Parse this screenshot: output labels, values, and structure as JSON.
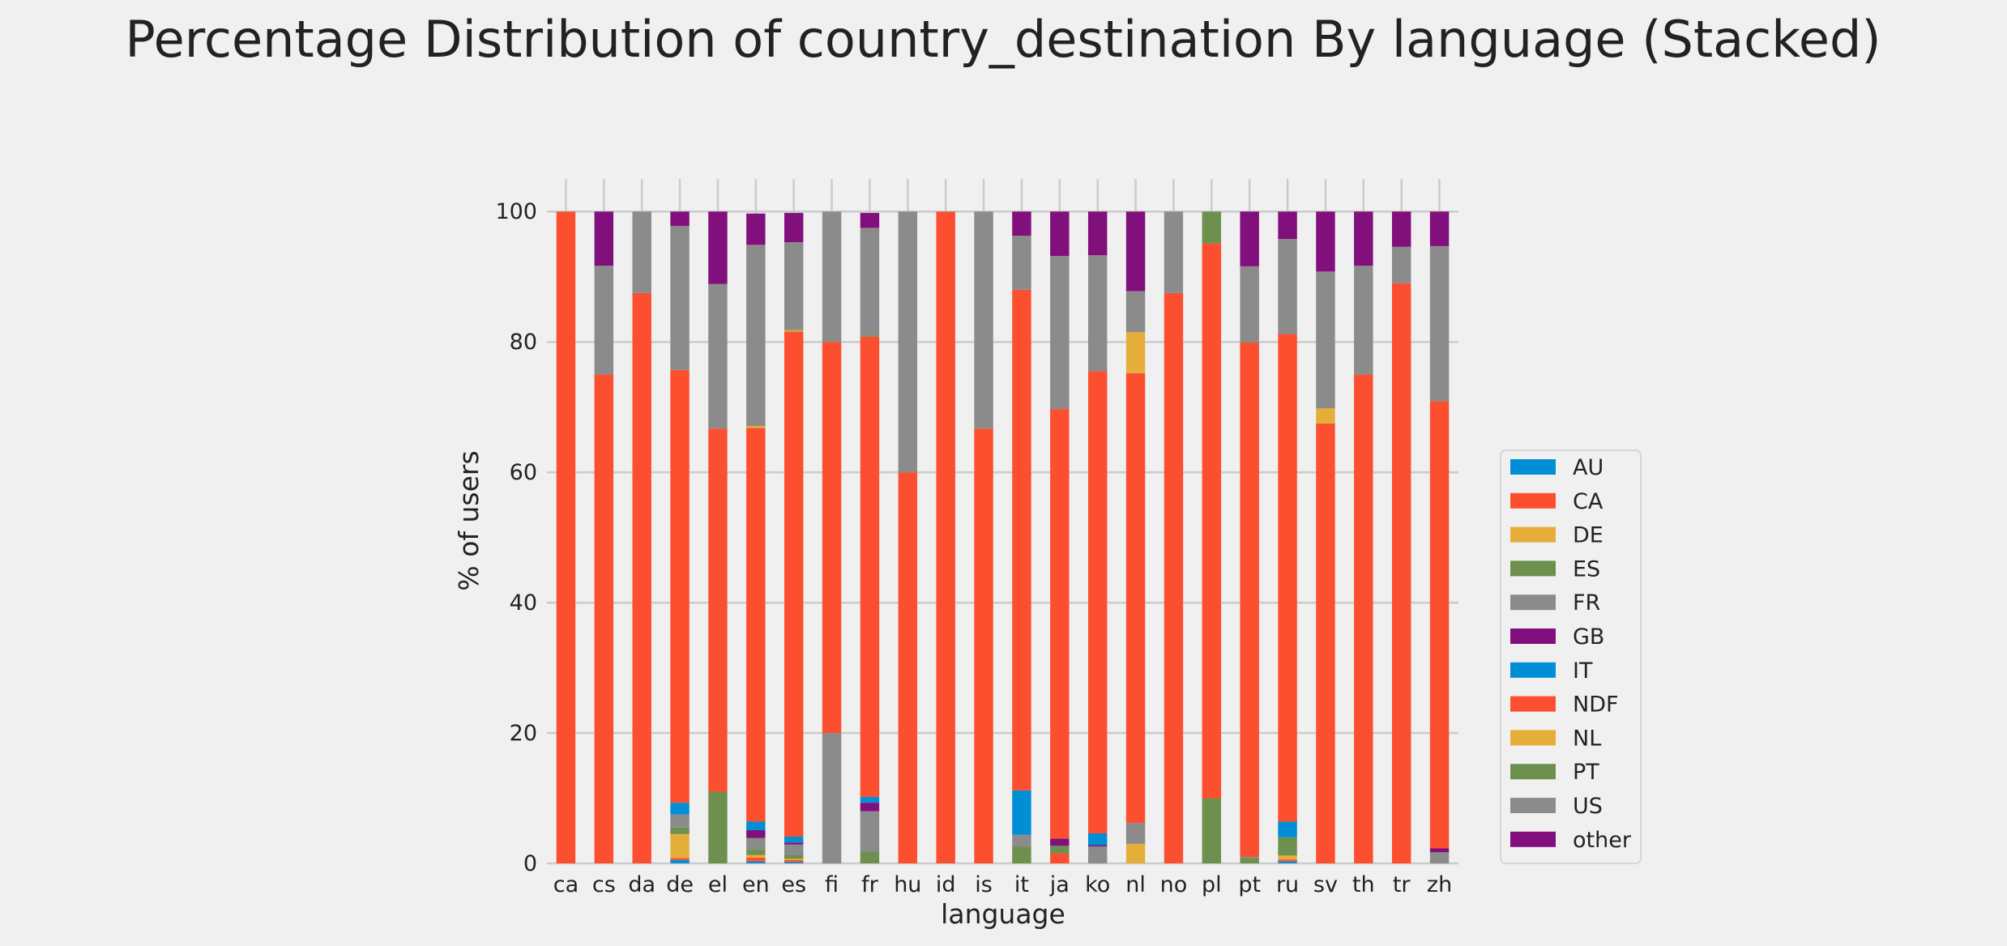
{
  "chart_data": {
    "type": "bar",
    "stacked": true,
    "title": "Percentage Distribution of country_destination By language (Stacked)",
    "xlabel": "language",
    "ylabel": "% of users",
    "ylim": [
      0,
      105
    ],
    "yticks": [
      0,
      20,
      40,
      60,
      80,
      100
    ],
    "grid": true,
    "legend_position": "right",
    "categories": [
      "ca",
      "cs",
      "da",
      "de",
      "el",
      "en",
      "es",
      "fi",
      "fr",
      "hu",
      "id",
      "is",
      "it",
      "ja",
      "ko",
      "nl",
      "no",
      "pl",
      "pt",
      "ru",
      "sv",
      "th",
      "tr",
      "zh"
    ],
    "series": [
      {
        "name": "AU",
        "color": "#008fd5",
        "values": [
          0,
          0,
          0,
          0.5,
          0,
          0.3,
          0.2,
          0,
          0,
          0,
          0,
          0,
          0,
          0,
          0,
          0,
          0,
          0,
          0,
          0.3,
          0,
          0,
          0,
          0
        ]
      },
      {
        "name": "CA",
        "color": "#fc4f30",
        "values": [
          0,
          0,
          0,
          0.3,
          0,
          0.6,
          0.3,
          0,
          0,
          0,
          0,
          0,
          0,
          1.5,
          0,
          0,
          0,
          0,
          0,
          0.3,
          0,
          0,
          0,
          0
        ]
      },
      {
        "name": "DE",
        "color": "#e5ae38",
        "values": [
          0,
          0,
          0,
          3.7,
          0,
          0.4,
          0.2,
          0,
          0,
          0,
          0,
          0,
          0,
          0,
          0,
          3,
          0,
          0,
          0,
          0.6,
          0,
          0,
          0,
          0
        ]
      },
      {
        "name": "ES",
        "color": "#6d904f",
        "values": [
          0,
          0,
          0,
          1,
          11,
          0.8,
          0.6,
          0,
          1.8,
          0,
          0,
          0,
          2.6,
          1.2,
          0,
          0,
          0,
          10,
          0.8,
          2.8,
          0,
          0,
          0,
          0
        ]
      },
      {
        "name": "FR",
        "color": "#8b8b8b",
        "values": [
          0,
          0,
          0,
          2,
          0,
          1.8,
          1.6,
          20,
          6.2,
          0,
          0,
          0,
          1.8,
          0,
          2.6,
          3.2,
          0,
          0,
          0.2,
          0,
          0,
          0,
          0,
          1.7
        ]
      },
      {
        "name": "GB",
        "color": "#810f7c",
        "values": [
          0,
          0,
          0,
          0,
          0,
          1.2,
          0.3,
          0,
          1.3,
          0,
          0,
          0,
          0,
          1.1,
          0.2,
          0,
          0,
          0,
          0,
          0,
          0,
          0,
          0,
          0.6
        ]
      },
      {
        "name": "IT",
        "color": "#008fd5",
        "values": [
          0,
          0,
          0,
          1.8,
          0,
          1.3,
          0.9,
          0,
          0.9,
          0,
          0,
          0,
          6.8,
          0,
          1.8,
          0,
          0,
          0,
          0,
          2.4,
          0,
          0,
          0,
          0
        ]
      },
      {
        "name": "NDF",
        "color": "#fc4f30",
        "values": [
          100,
          75,
          87.5,
          66.4,
          55.7,
          60.4,
          77.5,
          60,
          70.6,
          60,
          100,
          66.7,
          76.8,
          65.9,
          70.9,
          69,
          87.5,
          85.1,
          78.9,
          74.8,
          67.5,
          75,
          89,
          68.6
        ]
      },
      {
        "name": "NL",
        "color": "#e5ae38",
        "values": [
          0,
          0,
          0,
          0,
          0,
          0.3,
          0.2,
          0,
          0,
          0,
          0,
          0,
          0,
          0,
          0,
          6.3,
          0,
          0,
          0,
          0,
          2.3,
          0,
          0,
          0
        ]
      },
      {
        "name": "PT",
        "color": "#6d904f",
        "values": [
          0,
          0,
          0,
          0,
          0,
          0.1,
          0.1,
          0,
          0.2,
          0,
          0,
          0,
          0,
          0,
          0,
          0,
          0,
          4.9,
          0,
          0,
          0,
          0,
          0,
          0
        ]
      },
      {
        "name": "US",
        "color": "#8b8b8b",
        "values": [
          0,
          16.7,
          12.5,
          22.1,
          22.2,
          27.7,
          13.4,
          20,
          16.5,
          40,
          0,
          33.3,
          8.3,
          23.5,
          17.8,
          6.3,
          12.5,
          0,
          11.7,
          14.6,
          21,
          16.7,
          5.6,
          23.8
        ]
      },
      {
        "name": "other",
        "color": "#810f7c",
        "values": [
          0,
          8.3,
          0,
          2.2,
          11.1,
          4.8,
          4.5,
          0,
          2.3,
          0,
          0,
          0,
          3.7,
          6.8,
          6.7,
          12.2,
          0,
          0,
          8.4,
          4.2,
          9.2,
          8.3,
          5.4,
          5.3
        ]
      }
    ]
  }
}
